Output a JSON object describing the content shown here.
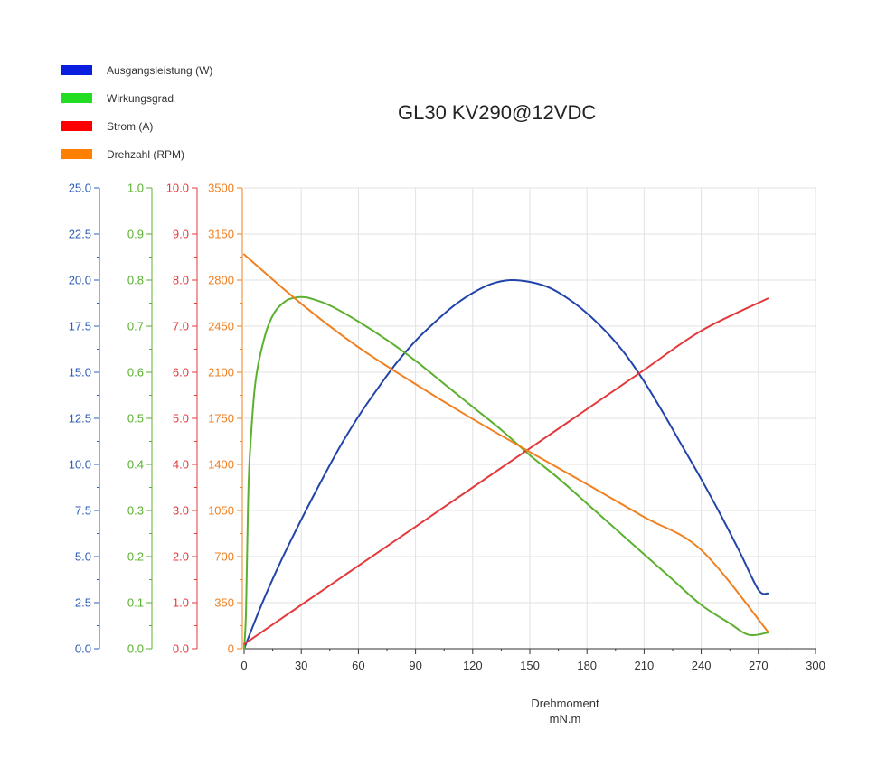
{
  "chart_data": {
    "type": "line",
    "title": "GL30 KV290@12VDC",
    "xlabel": "Drehmoment",
    "xunit": "mN.m",
    "xlim": [
      0,
      300
    ],
    "x_ticks": [
      "0",
      "30",
      "60",
      "90",
      "120",
      "150",
      "180",
      "210",
      "240",
      "270",
      "300"
    ],
    "grid": true,
    "legend_position": "top-left",
    "axes": [
      {
        "id": "power",
        "color": "#2e5db8",
        "ylim": [
          0,
          25
        ],
        "ticks": [
          "0.0",
          "2.5",
          "5.0",
          "7.5",
          "10.0",
          "12.5",
          "15.0",
          "17.5",
          "20.0",
          "22.5",
          "25.0"
        ]
      },
      {
        "id": "efficiency",
        "color": "#5bb12f",
        "ylim": [
          0,
          1
        ],
        "ticks": [
          "0.0",
          "0.1",
          "0.2",
          "0.3",
          "0.4",
          "0.5",
          "0.6",
          "0.7",
          "0.8",
          "0.9",
          "1.0"
        ]
      },
      {
        "id": "current",
        "color": "#e3393c",
        "ylim": [
          0,
          10
        ],
        "ticks": [
          "0.0",
          "1.0",
          "2.0",
          "3.0",
          "4.0",
          "5.0",
          "6.0",
          "7.0",
          "8.0",
          "9.0",
          "10.0"
        ]
      },
      {
        "id": "speed",
        "color": "#f08020",
        "ylim": [
          0,
          3500
        ],
        "ticks": [
          "0",
          "350",
          "700",
          "1050",
          "1400",
          "1750",
          "2100",
          "2450",
          "2800",
          "3150",
          "3500"
        ]
      }
    ],
    "series": [
      {
        "name": "Ausgangsleistung (W)",
        "axis": "power",
        "color": "#2244aa",
        "legend_color": "#0a1ee0",
        "points": [
          [
            0,
            0
          ],
          [
            10,
            2.6
          ],
          [
            20,
            4.9
          ],
          [
            30,
            7.0
          ],
          [
            40,
            9.0
          ],
          [
            50,
            10.9
          ],
          [
            60,
            12.6
          ],
          [
            70,
            14.1
          ],
          [
            80,
            15.5
          ],
          [
            90,
            16.7
          ],
          [
            100,
            17.7
          ],
          [
            110,
            18.6
          ],
          [
            120,
            19.3
          ],
          [
            130,
            19.8
          ],
          [
            140,
            20.0
          ],
          [
            150,
            19.9
          ],
          [
            160,
            19.6
          ],
          [
            170,
            19.0
          ],
          [
            180,
            18.2
          ],
          [
            190,
            17.2
          ],
          [
            200,
            16.0
          ],
          [
            210,
            14.5
          ],
          [
            220,
            12.8
          ],
          [
            230,
            11.0
          ],
          [
            240,
            9.2
          ],
          [
            250,
            7.3
          ],
          [
            260,
            5.3
          ],
          [
            270,
            3.2
          ],
          [
            275,
            3.0
          ]
        ]
      },
      {
        "name": "Wirkungsgrad",
        "axis": "efficiency",
        "color": "#5bb12f",
        "legend_color": "#22dd22",
        "points": [
          [
            0,
            0
          ],
          [
            1,
            0.08
          ],
          [
            2,
            0.3
          ],
          [
            3,
            0.42
          ],
          [
            6,
            0.58
          ],
          [
            11,
            0.68
          ],
          [
            16,
            0.73
          ],
          [
            22,
            0.755
          ],
          [
            27,
            0.762
          ],
          [
            31,
            0.763
          ],
          [
            35,
            0.76
          ],
          [
            45,
            0.745
          ],
          [
            60,
            0.71
          ],
          [
            75,
            0.67
          ],
          [
            90,
            0.625
          ],
          [
            105,
            0.575
          ],
          [
            120,
            0.525
          ],
          [
            135,
            0.475
          ],
          [
            150,
            0.42
          ],
          [
            165,
            0.37
          ],
          [
            180,
            0.315
          ],
          [
            195,
            0.26
          ],
          [
            210,
            0.205
          ],
          [
            225,
            0.15
          ],
          [
            240,
            0.095
          ],
          [
            255,
            0.055
          ],
          [
            265,
            0.03
          ],
          [
            275,
            0.035
          ]
        ]
      },
      {
        "name": "Strom (A)",
        "axis": "current",
        "color": "#e3393c",
        "legend_color": "#ff0000",
        "points": [
          [
            0,
            0.1
          ],
          [
            30,
            0.95
          ],
          [
            60,
            1.8
          ],
          [
            90,
            2.65
          ],
          [
            120,
            3.5
          ],
          [
            150,
            4.35
          ],
          [
            180,
            5.2
          ],
          [
            210,
            6.05
          ],
          [
            240,
            6.9
          ],
          [
            275,
            7.6
          ]
        ]
      },
      {
        "name": "Drehzahl (RPM)",
        "axis": "speed",
        "color": "#f08020",
        "legend_color": "#ff7f00",
        "points": [
          [
            0,
            2995
          ],
          [
            30,
            2620
          ],
          [
            60,
            2290
          ],
          [
            90,
            2010
          ],
          [
            120,
            1745
          ],
          [
            150,
            1495
          ],
          [
            180,
            1250
          ],
          [
            210,
            1000
          ],
          [
            240,
            750
          ],
          [
            275,
            130
          ]
        ]
      }
    ]
  }
}
